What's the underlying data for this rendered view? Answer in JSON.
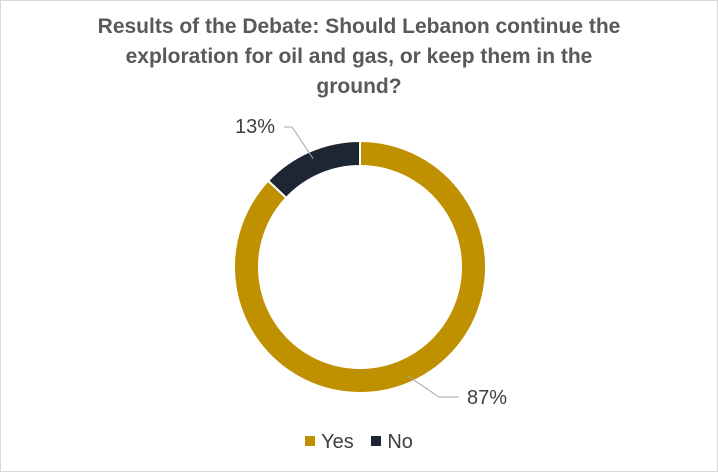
{
  "chart_data": {
    "type": "pie",
    "variant": "donut",
    "title": "Results of the Debate: Should Lebanon continue the exploration for oil and gas, or keep them in the ground?",
    "title_lines": [
      "Results of the Debate: Should Lebanon continue the",
      "exploration for oil and gas, or keep them in the",
      "ground?"
    ],
    "slices": [
      {
        "label": "Yes",
        "value": 87,
        "display": "87%",
        "color": "#bf9000"
      },
      {
        "label": "No",
        "value": 13,
        "display": "13%",
        "color": "#1f2633"
      }
    ],
    "legend_position": "bottom"
  }
}
